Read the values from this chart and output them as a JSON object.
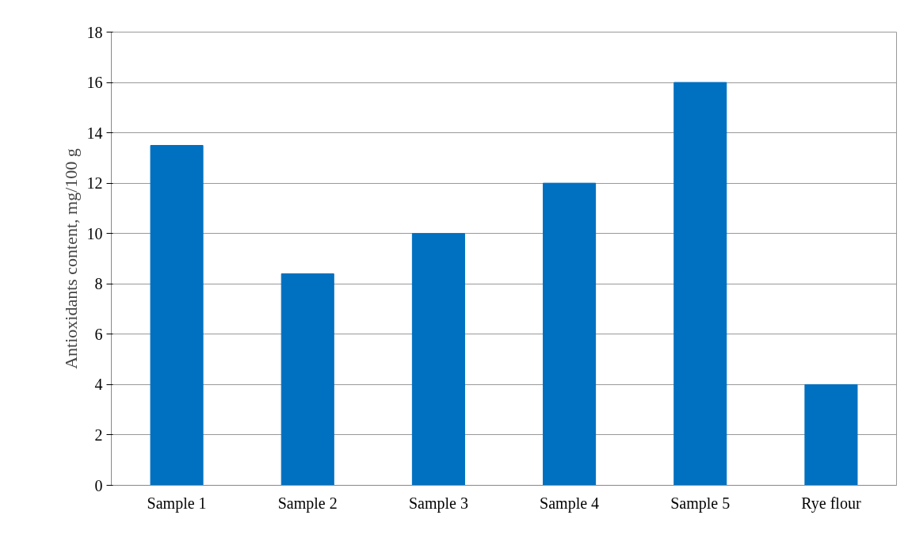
{
  "chart_data": {
    "type": "bar",
    "ylabel": "Antioxidants content, mg/100 g",
    "categories": [
      "Sample 1",
      "Sample 2",
      "Sample 3",
      "Sample 4",
      "Sample 5",
      "Rye flour"
    ],
    "values": [
      13.5,
      8.4,
      10,
      12,
      16,
      4
    ],
    "color": "#0070c0",
    "ylim": [
      0,
      18
    ],
    "yticks": [
      0,
      2,
      4,
      6,
      8,
      10,
      12,
      14,
      16,
      18
    ],
    "grid": "y"
  }
}
